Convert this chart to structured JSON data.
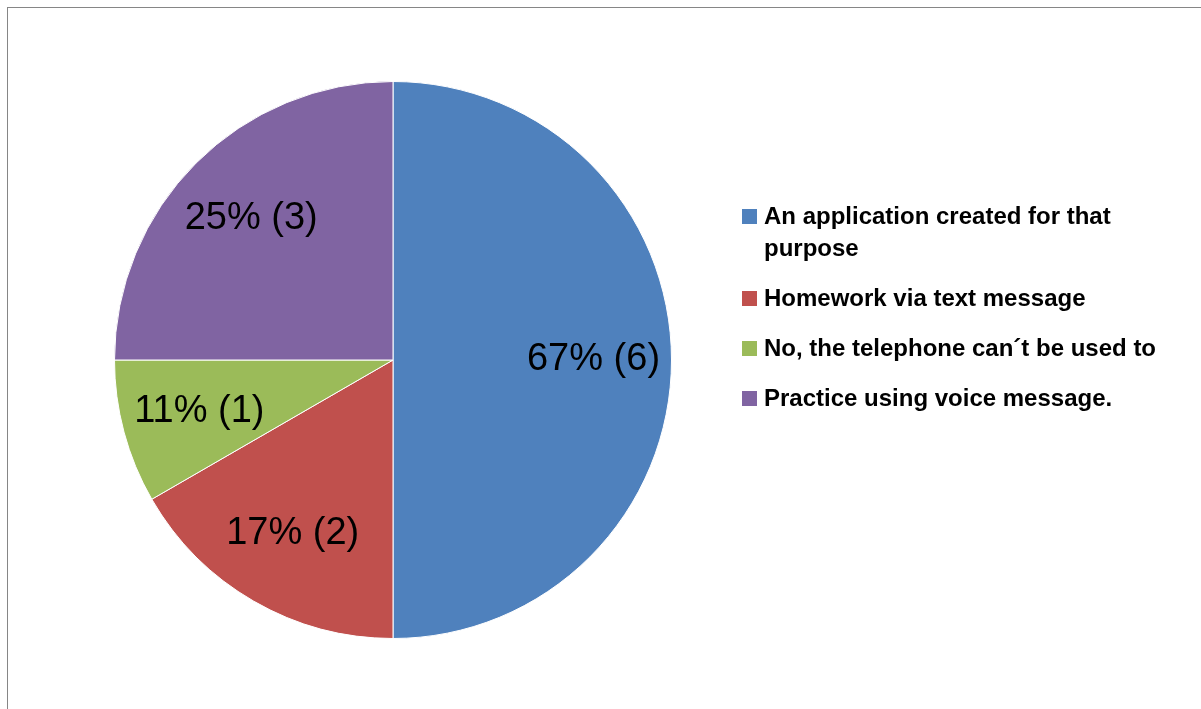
{
  "chart_data": {
    "type": "pie",
    "categories": [
      "An application created for that purpose",
      "Homework via text message",
      "No, the telephone can´t be used to",
      "Practice using voice message."
    ],
    "values": [
      6,
      2,
      1,
      3
    ],
    "colors": [
      "#4f81bd",
      "#c0504d",
      "#9bbb59",
      "#8064a2"
    ],
    "value_labels": [
      "67% (6)",
      "17% (2)",
      "11% (1)",
      "25% (3)"
    ],
    "legend": "right"
  }
}
